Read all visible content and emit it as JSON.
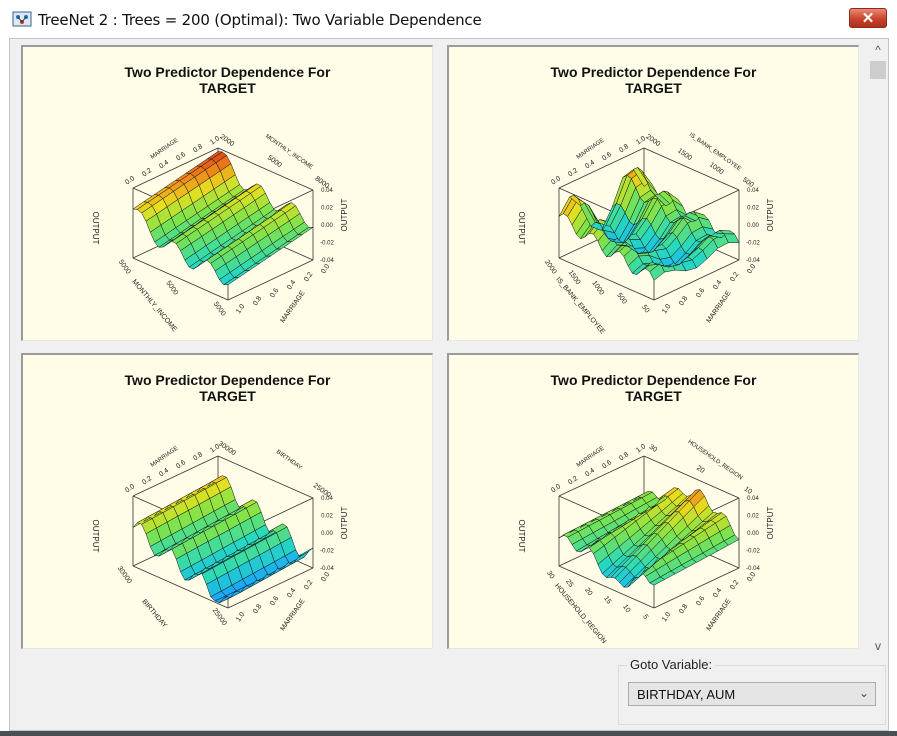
{
  "window": {
    "title": "TreeNet 2 : Trees = 200 (Optimal): Two Variable Dependence",
    "close_label": "✕"
  },
  "panels": [
    {
      "title_line1": "Two Predictor Dependence For",
      "title_line2": "TARGET",
      "x_variable": "MONTHLY_INCOME",
      "y_variable": "MARRIAGE",
      "z_label": "OUTPUT",
      "top_left_axis": "MARRIAGE",
      "top_right_axis": "MONTHLY_INCOME",
      "x_ticks": [
        "5000",
        "5000",
        "5000"
      ],
      "y_ticks": [
        "0.0",
        "0.2",
        "0.4",
        "0.6",
        "0.8",
        "1.0"
      ],
      "top_ticks": [
        "0.0",
        "0.2",
        "0.4",
        "0.6",
        "0.8",
        "1.0"
      ],
      "top_right_ticks": [
        "2000",
        "5000",
        "8000"
      ],
      "z_ticks": [
        "0.04",
        "0.02",
        "0.00",
        "-0.02",
        "-0.04"
      ]
    },
    {
      "title_line1": "Two Predictor Dependence For",
      "title_line2": "TARGET",
      "x_variable": "IS_BANK_EMPLOYEE",
      "y_variable": "MARRIAGE",
      "z_label": "OUTPUT",
      "top_left_axis": "MARRIAGE",
      "top_right_axis": "IS_BANK_EMPLOYEE",
      "x_ticks": [
        "2000",
        "1500",
        "1000",
        "500",
        "50"
      ],
      "y_ticks": [
        "0.0",
        "0.2",
        "0.4",
        "0.6",
        "0.8",
        "1.0"
      ],
      "top_ticks": [
        "0.0",
        "0.2",
        "0.4",
        "0.6",
        "0.8",
        "1.0"
      ],
      "top_right_ticks": [
        "2000",
        "1500",
        "1000",
        "500"
      ],
      "z_ticks": [
        "0.04",
        "0.02",
        "0.00",
        "-0.02",
        "-0.04"
      ]
    },
    {
      "title_line1": "Two Predictor Dependence For",
      "title_line2": "TARGET",
      "x_variable": "BIRTHDAY",
      "y_variable": "MARRIAGE",
      "z_label": "OUTPUT",
      "top_left_axis": "MARRIAGE",
      "top_right_axis": "BIRTHDAY",
      "x_ticks": [
        "30000",
        "25000"
      ],
      "y_ticks": [
        "0.0",
        "0.2",
        "0.4",
        "0.6",
        "0.8",
        "1.0"
      ],
      "top_ticks": [
        "0.0",
        "0.2",
        "0.4",
        "0.6",
        "0.8",
        "1.0"
      ],
      "top_right_ticks": [
        "30000",
        "25000"
      ],
      "z_ticks": [
        "0.04",
        "0.02",
        "0.00",
        "-0.02",
        "-0.04"
      ]
    },
    {
      "title_line1": "Two Predictor Dependence For",
      "title_line2": "TARGET",
      "x_variable": "HOUSEHOLD_REGION",
      "y_variable": "MARRIAGE",
      "z_label": "OUTPUT",
      "top_left_axis": "MARRIAGE",
      "top_right_axis": "HOUSEHOLD_REGION",
      "x_ticks": [
        "30",
        "25",
        "20",
        "15",
        "10",
        "5"
      ],
      "y_ticks": [
        "0.0",
        "0.2",
        "0.4",
        "0.6",
        "0.8",
        "1.0"
      ],
      "top_ticks": [
        "0.0",
        "0.2",
        "0.4",
        "0.6",
        "0.8",
        "1.0"
      ],
      "top_right_ticks": [
        "30",
        "20",
        "10"
      ],
      "z_ticks": [
        "0.04",
        "0.02",
        "0.00",
        "-0.02",
        "-0.04"
      ]
    }
  ],
  "scrollbar": {
    "up_icon": "chevron-up-icon",
    "down_icon": "chevron-down-icon",
    "up_glyph": "^",
    "down_glyph": "v"
  },
  "goto": {
    "label": "Goto Variable:",
    "selected": "BIRTHDAY, AUM"
  }
}
